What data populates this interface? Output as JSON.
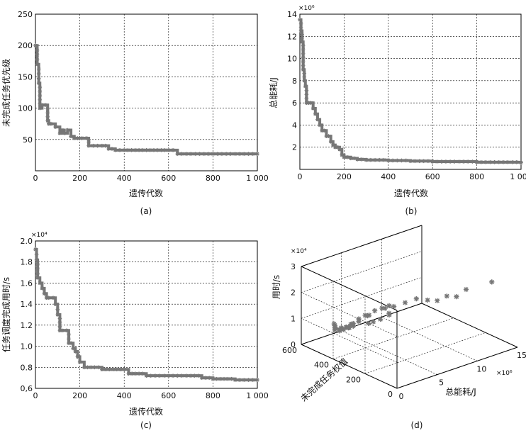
{
  "chart_data": [
    {
      "type": "line",
      "caption": "(a)",
      "xlabel": "遗传代数",
      "ylabel": "未完成任务优先级",
      "xlim": [
        0,
        1000
      ],
      "ylim": [
        0,
        250
      ],
      "xticks": [
        0,
        200,
        400,
        600,
        800,
        1000
      ],
      "xtick_labels": [
        "0",
        "200",
        "400",
        "600",
        "800",
        "1 000"
      ],
      "yticks": [
        50,
        100,
        150,
        200,
        250
      ],
      "ytick_labels": [
        "50",
        "100",
        "150",
        "200",
        "250"
      ],
      "marker": "star",
      "x": [
        0,
        8,
        15,
        20,
        30,
        45,
        55,
        60,
        70,
        90,
        110,
        120,
        130,
        145,
        160,
        175,
        190,
        210,
        230,
        240,
        260,
        300,
        330,
        360,
        400,
        450,
        500,
        550,
        600,
        620,
        640,
        680,
        720,
        800,
        900,
        1000
      ],
      "y": [
        200,
        170,
        140,
        100,
        105,
        105,
        80,
        75,
        75,
        70,
        60,
        65,
        60,
        65,
        55,
        52,
        52,
        52,
        52,
        40,
        40,
        40,
        35,
        33,
        33,
        33,
        33,
        33,
        33,
        33,
        27,
        27,
        27,
        27,
        27,
        27
      ]
    },
    {
      "type": "line",
      "caption": "(b)",
      "xlabel": "遗传代数",
      "ylabel": "总能耗/J",
      "multiplier": "×10⁶",
      "xlim": [
        0,
        1000
      ],
      "ylim": [
        0,
        14
      ],
      "xticks": [
        0,
        200,
        400,
        600,
        800,
        1000
      ],
      "xtick_labels": [
        "0",
        "200",
        "400",
        "600",
        "800",
        "1 000"
      ],
      "yticks": [
        2,
        4,
        6,
        8,
        10,
        12,
        14
      ],
      "ytick_labels": [
        "2",
        "4",
        "6",
        "8",
        "10",
        "12",
        "14"
      ],
      "marker": "star",
      "x": [
        0,
        5,
        10,
        15,
        20,
        25,
        30,
        40,
        50,
        60,
        70,
        80,
        90,
        100,
        110,
        120,
        130,
        140,
        150,
        160,
        170,
        180,
        190,
        200,
        230,
        260,
        300,
        400,
        500,
        600,
        700,
        800,
        900,
        1000
      ],
      "y": [
        13.5,
        12.5,
        11.5,
        9.0,
        8.0,
        7.5,
        6.0,
        6.0,
        6.0,
        5.5,
        5.0,
        4.5,
        4.0,
        3.5,
        3.5,
        3.0,
        3.0,
        2.5,
        2.2,
        2.0,
        2.0,
        1.8,
        1.3,
        1.1,
        1.0,
        0.9,
        0.85,
        0.8,
        0.75,
        0.7,
        0.7,
        0.65,
        0.65,
        0.6
      ]
    },
    {
      "type": "line",
      "caption": "(c)",
      "xlabel": "遗传代数",
      "ylabel": "任务调度完成用时/s",
      "multiplier": "×10⁴",
      "xlim": [
        0,
        1000
      ],
      "ylim": [
        0.6,
        2.0
      ],
      "xticks": [
        0,
        200,
        400,
        600,
        800,
        1000
      ],
      "xtick_labels": [
        "0",
        "200",
        "400",
        "600",
        "800",
        "1 000"
      ],
      "yticks": [
        0.6,
        0.8,
        1.0,
        1.2,
        1.4,
        1.6,
        1.8,
        2.0
      ],
      "ytick_labels": [
        "0,6",
        "0.8",
        "1.0",
        "1.2",
        "1.4",
        "1.6",
        "1.8",
        "2.0"
      ],
      "marker": "star",
      "x": [
        0,
        5,
        10,
        20,
        30,
        40,
        50,
        60,
        80,
        90,
        100,
        110,
        120,
        140,
        150,
        160,
        170,
        180,
        190,
        200,
        220,
        250,
        300,
        350,
        400,
        420,
        450,
        500,
        600,
        700,
        750,
        800,
        850,
        900,
        1000
      ],
      "y": [
        1.92,
        1.82,
        1.65,
        1.6,
        1.55,
        1.5,
        1.46,
        1.46,
        1.46,
        1.4,
        1.3,
        1.15,
        1.15,
        1.15,
        1.03,
        1.03,
        0.98,
        0.95,
        0.9,
        0.85,
        0.8,
        0.8,
        0.78,
        0.78,
        0.78,
        0.74,
        0.74,
        0.72,
        0.72,
        0.72,
        0.7,
        0.69,
        0.69,
        0.68,
        0.68
      ]
    },
    {
      "type": "scatter3d",
      "caption": "(d)",
      "xlabel": "总能耗/J",
      "ylabel": "未完成任务权值",
      "zlabel": "用时/s",
      "x_multiplier": "×10⁶",
      "z_multiplier": "×10⁴",
      "xlim": [
        0,
        15
      ],
      "ylim": [
        0,
        600
      ],
      "zlim": [
        0,
        3
      ],
      "xticks": [
        0,
        5,
        10,
        15
      ],
      "yticks": [
        0,
        200,
        400,
        600
      ],
      "zticks": [
        0,
        1,
        2,
        3
      ],
      "marker": "star",
      "points": [
        [
          1,
          100,
          2.5
        ],
        [
          2,
          120,
          2.6
        ],
        [
          1.5,
          150,
          2.5
        ],
        [
          3,
          100,
          2.7
        ],
        [
          4,
          80,
          2.8
        ],
        [
          5,
          60,
          2.7
        ],
        [
          6,
          50,
          2.6
        ],
        [
          7,
          40,
          2.7
        ],
        [
          8,
          30,
          2.6
        ],
        [
          9,
          20,
          2.8
        ],
        [
          12,
          10,
          2.8
        ],
        [
          0.5,
          200,
          2.2
        ],
        [
          1,
          250,
          2.0
        ],
        [
          0.8,
          280,
          1.8
        ],
        [
          1.2,
          300,
          1.6
        ],
        [
          0.6,
          320,
          1.5
        ],
        [
          1.5,
          260,
          1.9
        ],
        [
          2,
          240,
          2.1
        ],
        [
          2.5,
          220,
          2.2
        ],
        [
          3,
          200,
          2.3
        ],
        [
          0.7,
          350,
          1.3
        ],
        [
          1,
          370,
          1.2
        ],
        [
          1.5,
          380,
          1.1
        ],
        [
          0.8,
          400,
          1.0
        ],
        [
          1.2,
          420,
          0.95
        ],
        [
          2,
          400,
          1.0
        ],
        [
          1,
          440,
          0.9
        ],
        [
          1.5,
          460,
          0.85
        ],
        [
          2,
          450,
          0.85
        ],
        [
          1.8,
          480,
          0.8
        ],
        [
          2.2,
          500,
          0.78
        ],
        [
          2.5,
          520,
          0.75
        ],
        [
          1.6,
          430,
          0.9
        ],
        [
          0.9,
          380,
          1.1
        ],
        [
          3,
          300,
          1.4
        ],
        [
          3.5,
          280,
          1.5
        ],
        [
          2.8,
          320,
          1.3
        ],
        [
          4,
          250,
          1.7
        ],
        [
          1.3,
          340,
          1.4
        ],
        [
          1.7,
          360,
          1.2
        ]
      ]
    }
  ]
}
